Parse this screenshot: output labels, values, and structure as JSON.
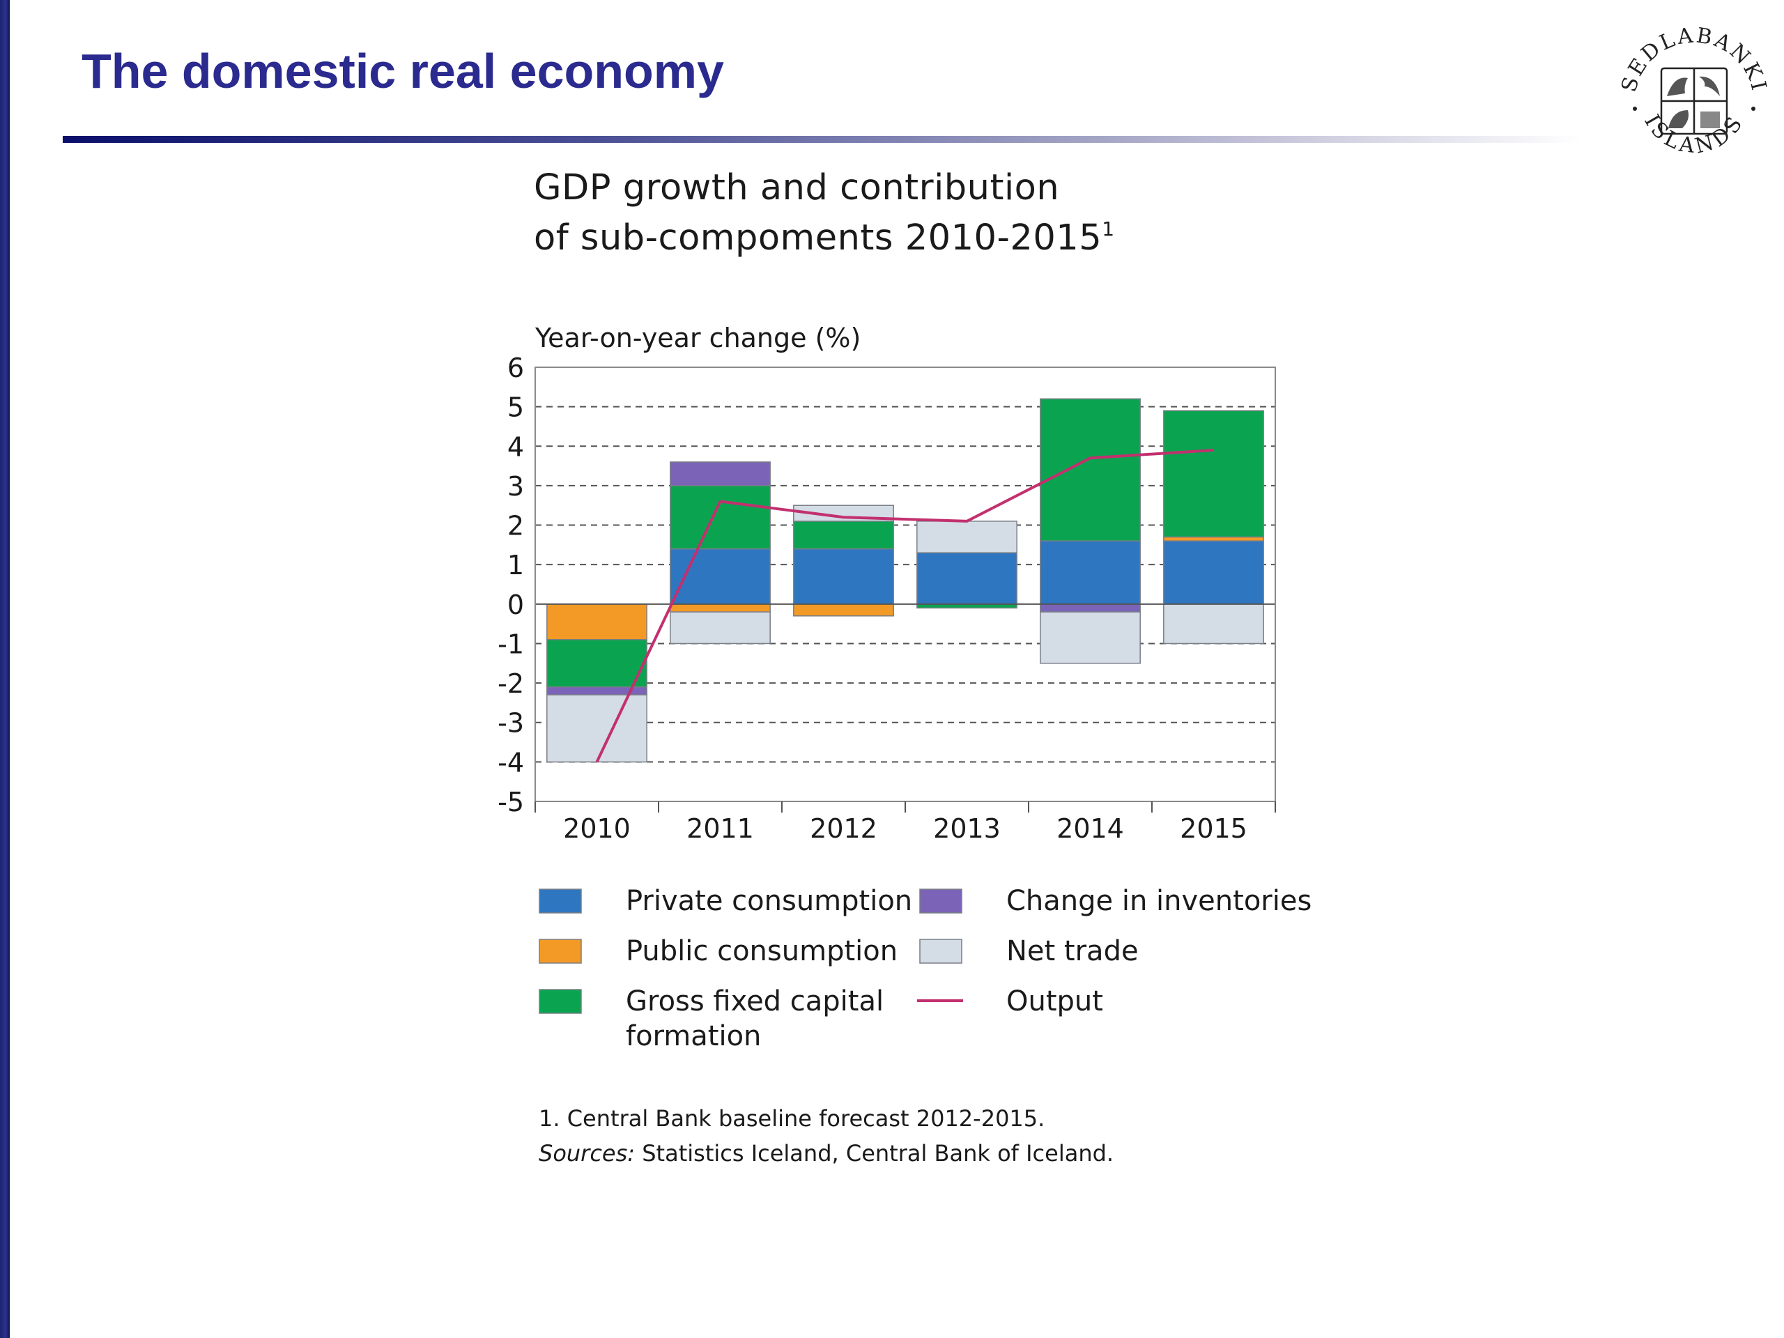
{
  "slide": {
    "title": "The domestic real economy"
  },
  "logo": {
    "name": "sedlabanki-islands-seal",
    "top_text": "SEDLABANKI",
    "bottom_text": "ISLANDS"
  },
  "colors": {
    "title_blue": "#2a2a8f",
    "private_consumption": "#2f76c0",
    "public_consumption": "#f39a26",
    "gross_fixed_capital_formation": "#0aa450",
    "change_in_inventories": "#7b63b8",
    "net_trade": "#d4dce6",
    "output": "#c2306f"
  },
  "chart_data": {
    "type": "bar",
    "stacked": true,
    "title_line1": "GDP growth and contribution",
    "title_line2": "of sub-compoments 2010-2015",
    "title_superscript": "1",
    "ylabel": "Year-on-year change (%)",
    "ylim": [
      -5,
      6
    ],
    "yticks": [
      6,
      5,
      4,
      3,
      2,
      1,
      0,
      -1,
      -2,
      -3,
      -4,
      -5
    ],
    "grid": "dashed horizontal",
    "categories": [
      "2010",
      "2011",
      "2012",
      "2013",
      "2014",
      "2015"
    ],
    "series": [
      {
        "name": "Private consumption",
        "color": "#2f76c0",
        "values": [
          0,
          1.4,
          1.4,
          1.3,
          1.6,
          1.6
        ]
      },
      {
        "name": "Public consumption",
        "color": "#f39a26",
        "values": [
          -0.9,
          -0.2,
          -0.3,
          0,
          0,
          0.1
        ]
      },
      {
        "name": "Gross fixed capital formation",
        "color": "#0aa450",
        "values": [
          -1.2,
          1.6,
          0.7,
          -0.1,
          3.6,
          3.2
        ]
      },
      {
        "name": "Change in inventories",
        "color": "#7b63b8",
        "values": [
          -0.2,
          0.6,
          0,
          0,
          -0.2,
          0
        ]
      },
      {
        "name": "Net trade",
        "color": "#d4dce6",
        "values": [
          -1.7,
          -0.8,
          0.4,
          0.8,
          -1.3,
          -1.0
        ]
      }
    ],
    "line": {
      "name": "Output",
      "color": "#c2306f",
      "values": [
        -4.0,
        2.6,
        2.2,
        2.1,
        3.7,
        3.9
      ]
    },
    "legend": [
      {
        "label": "Private consumption",
        "color": "#2f76c0",
        "kind": "box"
      },
      {
        "label": "Change in inventories",
        "color": "#7b63b8",
        "kind": "box"
      },
      {
        "label": "Public consumption",
        "color": "#f39a26",
        "kind": "box"
      },
      {
        "label": "Net trade",
        "color": "#d4dce6",
        "kind": "box"
      },
      {
        "label": "Gross fixed capital",
        "label2": "formation",
        "color": "#0aa450",
        "kind": "box"
      },
      {
        "label": "Output",
        "color": "#c2306f",
        "kind": "line"
      }
    ],
    "legend_position": "below"
  },
  "footnotes": {
    "note1": "1. Central Bank baseline forecast 2012-2015.",
    "sources_label": "Sources:",
    "sources_text": " Statistics Iceland, Central Bank of Iceland."
  }
}
